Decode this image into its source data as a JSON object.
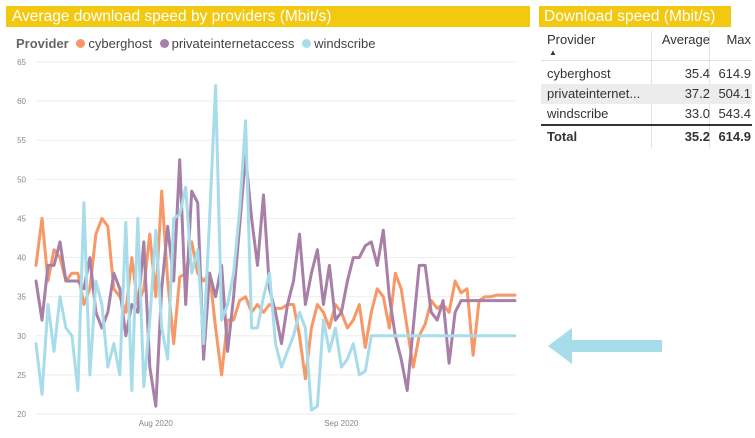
{
  "chart": {
    "title": "Average download speed by providers (Mbit/s)"
  },
  "legend": {
    "title": "Provider",
    "items": [
      {
        "name": "cyberghost",
        "color": "#f79866"
      },
      {
        "name": "privateinternetaccess",
        "color": "#a87fa6"
      },
      {
        "name": "windscribe",
        "color": "#a7dcea"
      }
    ]
  },
  "chart_data": {
    "type": "line",
    "title": "Average download speed by providers (Mbit/s)",
    "xlabel": "",
    "ylabel": "",
    "ylim": [
      20,
      65
    ],
    "yticks": [
      20,
      25,
      30,
      35,
      40,
      45,
      50,
      55,
      60,
      65
    ],
    "xrange": [
      "2020-07-12",
      "2020-09-30"
    ],
    "xticks": [
      {
        "date": "2020-08-01",
        "label": "Aug 2020"
      },
      {
        "date": "2020-09-01",
        "label": "Sep 2020"
      }
    ],
    "grid": "horizontal",
    "legend": "top",
    "x": [
      "2020-07-12",
      "2020-07-13",
      "2020-07-14",
      "2020-07-15",
      "2020-07-16",
      "2020-07-17",
      "2020-07-18",
      "2020-07-19",
      "2020-07-20",
      "2020-07-21",
      "2020-07-22",
      "2020-07-23",
      "2020-07-24",
      "2020-07-25",
      "2020-07-26",
      "2020-07-27",
      "2020-07-28",
      "2020-07-29",
      "2020-07-30",
      "2020-07-31",
      "2020-08-01",
      "2020-08-02",
      "2020-08-03",
      "2020-08-04",
      "2020-08-05",
      "2020-08-06",
      "2020-08-07",
      "2020-08-08",
      "2020-08-09",
      "2020-08-10",
      "2020-08-11",
      "2020-08-12",
      "2020-08-13",
      "2020-08-14",
      "2020-08-15",
      "2020-08-16",
      "2020-08-17",
      "2020-08-18",
      "2020-08-19",
      "2020-08-20",
      "2020-08-21",
      "2020-08-22",
      "2020-08-23",
      "2020-08-24",
      "2020-08-25",
      "2020-08-26",
      "2020-08-27",
      "2020-08-28",
      "2020-08-29",
      "2020-08-30",
      "2020-08-31",
      "2020-09-01",
      "2020-09-02",
      "2020-09-03",
      "2020-09-04",
      "2020-09-05",
      "2020-09-06",
      "2020-09-07",
      "2020-09-08",
      "2020-09-09",
      "2020-09-10",
      "2020-09-11",
      "2020-09-12",
      "2020-09-13",
      "2020-09-14",
      "2020-09-15",
      "2020-09-16",
      "2020-09-17",
      "2020-09-18",
      "2020-09-19",
      "2020-09-20",
      "2020-09-21",
      "2020-09-22",
      "2020-09-23",
      "2020-09-24",
      "2020-09-25",
      "2020-09-26",
      "2020-09-27",
      "2020-09-28",
      "2020-09-29",
      "2020-09-30"
    ],
    "series": [
      {
        "name": "cyberghost",
        "color": "#f79866",
        "values": [
          39.0,
          45.0,
          37.0,
          41.0,
          40.0,
          37.0,
          38.0,
          38.0,
          34.0,
          36.0,
          43.0,
          45.0,
          44.0,
          36.0,
          35.0,
          33.0,
          40.0,
          34.0,
          36.0,
          43.0,
          35.0,
          48.5,
          37.0,
          29.0,
          37.5,
          38.0,
          42.0,
          38.0,
          37.0,
          38.0,
          31.0,
          25.0,
          32.0,
          32.0,
          34.5,
          35.0,
          33.0,
          34.0,
          33.0,
          34.0,
          33.5,
          33.5,
          34.0,
          34.0,
          30.0,
          24.5,
          31.0,
          34.0,
          33.0,
          31.0,
          34.0,
          33.0,
          31.0,
          32.0,
          34.0,
          28.5,
          33.0,
          36.0,
          35.0,
          31.0,
          38.0,
          36.0,
          31.0,
          26.0,
          30.0,
          31.5,
          34.5,
          33.5,
          34.0,
          33.0,
          37.0,
          35.5,
          36.0,
          27.5,
          34.5,
          35.0,
          35.0,
          35.2,
          35.2,
          35.2,
          35.2
        ]
      },
      {
        "name": "privateinternetaccess",
        "color": "#a87fa6",
        "values": [
          37.0,
          32.0,
          39.0,
          39.0,
          42.0,
          37.0,
          37.0,
          37.0,
          36.0,
          40.0,
          33.0,
          31.0,
          33.0,
          38.0,
          36.0,
          30.0,
          34.0,
          33.0,
          42.0,
          26.0,
          21.0,
          36.0,
          44.0,
          37.0,
          52.5,
          34.0,
          48.5,
          47.0,
          27.0,
          38.0,
          35.0,
          39.0,
          28.0,
          35.0,
          44.0,
          53.0,
          45.0,
          39.0,
          48.0,
          36.0,
          33.0,
          29.0,
          34.0,
          37.0,
          43.0,
          34.0,
          38.0,
          41.0,
          34.0,
          39.0,
          32.0,
          33.0,
          37.0,
          40.0,
          40.0,
          41.5,
          42.0,
          39.0,
          43.5,
          35.0,
          30.0,
          27.0,
          23.0,
          31.0,
          39.0,
          39.0,
          33.0,
          32.0,
          34.5,
          26.5,
          33.0,
          34.5,
          34.5,
          34.5,
          34.5,
          34.5,
          34.5,
          34.5,
          34.5,
          34.5,
          34.5
        ]
      },
      {
        "name": "windscribe",
        "color": "#a7dcea",
        "values": [
          29.0,
          22.5,
          34.0,
          28.0,
          35.0,
          31.0,
          30.0,
          23.0,
          47.0,
          25.0,
          37.0,
          34.0,
          26.0,
          29.0,
          25.0,
          44.5,
          23.0,
          45.0,
          23.5,
          32.0,
          43.5,
          31.0,
          27.0,
          45.0,
          45.5,
          49.0,
          38.0,
          41.0,
          29.0,
          45.0,
          62.0,
          32.0,
          34.0,
          38.0,
          46.0,
          57.5,
          31.0,
          31.0,
          35.0,
          38.0,
          29.0,
          26.0,
          28.0,
          30.0,
          33.0,
          31.0,
          20.5,
          21.0,
          32.0,
          28.0,
          31.0,
          26.0,
          27.0,
          29.0,
          25.0,
          25.5,
          30.0,
          30.0,
          30.0,
          30.0,
          30.0,
          30.0,
          30.0,
          30.0,
          30.0,
          30.0,
          30.0,
          30.0,
          30.0,
          30.0,
          30.0,
          30.0,
          30.0,
          30.0,
          30.0,
          30.0,
          30.0,
          30.0,
          30.0,
          30.0,
          30.0
        ]
      }
    ]
  },
  "table": {
    "title": "Download speed (Mbit/s)",
    "headers": {
      "provider": "Provider",
      "average": "Average",
      "max": "Max"
    },
    "rows": [
      {
        "provider": "cyberghost",
        "average": "35.4",
        "max": "614.9"
      },
      {
        "provider": "privateinternet...",
        "average": "37.2",
        "max": "504.1"
      },
      {
        "provider": "windscribe",
        "average": "33.0",
        "max": "543.4"
      }
    ],
    "total": {
      "label": "Total",
      "average": "35.2",
      "max": "614.9"
    }
  },
  "icons": {
    "sort": "sort-ascending-icon",
    "arrow": "left-arrow-icon"
  },
  "colors": {
    "header_bg": "#f2c811",
    "arrow": "#a7dcea"
  }
}
